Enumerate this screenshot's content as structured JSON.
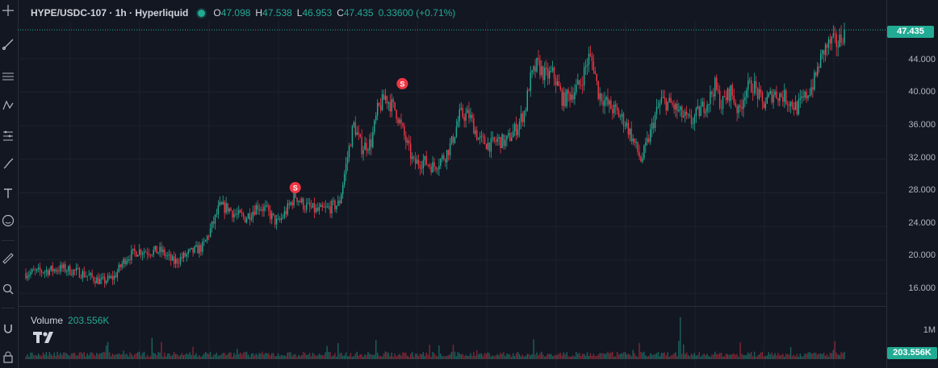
{
  "header": {
    "symbol": "HYPE/USDC-107 · 1h · Hyperliquid",
    "open_label": "O",
    "open": "47.098",
    "high_label": "H",
    "high": "47.538",
    "low_label": "L",
    "low": "46.953",
    "close_label": "C",
    "close": "47.435",
    "change": "0.33600 (+0.71%)"
  },
  "volume": {
    "label": "Volume",
    "value": "203.556K",
    "badge": "203.556K",
    "scale_tick": "1M"
  },
  "price_scale": {
    "ticks": [
      "44.000",
      "40.000",
      "36.000",
      "32.000",
      "28.000",
      "24.000",
      "20.000",
      "16.000"
    ],
    "last_price": "47.435"
  },
  "colors": {
    "up": "#22ab94",
    "down": "#f23645",
    "background": "#131722",
    "grid": "#1e222d",
    "signal": "#f23645"
  },
  "toolbar": {
    "icons": [
      "crosshair-icon",
      "trend-line-icon",
      "fib-retracement-icon",
      "pattern-icon",
      "forecast-icon",
      "brush-icon",
      "text-icon",
      "emoji-icon",
      "ruler-icon",
      "zoom-icon",
      "magnet-icon",
      "lock-icon"
    ]
  },
  "chart_data": {
    "type": "candlestick",
    "ylim": [
      14.5,
      48.5
    ],
    "grid": true,
    "last_close": 47.435,
    "path": [
      [
        0,
        18.4
      ],
      [
        18,
        18.6
      ],
      [
        45,
        19.0
      ],
      [
        70,
        18.4
      ],
      [
        95,
        17.4
      ],
      [
        110,
        17.9
      ],
      [
        125,
        20.2
      ],
      [
        140,
        21.1
      ],
      [
        170,
        21.0
      ],
      [
        185,
        19.7
      ],
      [
        205,
        20.8
      ],
      [
        222,
        21.6
      ],
      [
        235,
        24.5
      ],
      [
        242,
        26.3
      ],
      [
        253,
        26.2
      ],
      [
        262,
        25.4
      ],
      [
        275,
        25.0
      ],
      [
        290,
        26.5
      ],
      [
        300,
        26.0
      ],
      [
        315,
        24.3
      ],
      [
        327,
        26.0
      ],
      [
        337,
        27.7
      ],
      [
        348,
        26.5
      ],
      [
        365,
        25.8
      ],
      [
        377,
        26.1
      ],
      [
        392,
        26.7
      ],
      [
        400,
        31.0
      ],
      [
        410,
        36.2
      ],
      [
        420,
        33.4
      ],
      [
        432,
        34.0
      ],
      [
        440,
        37.8
      ],
      [
        450,
        39.5
      ],
      [
        456,
        38.6
      ],
      [
        463,
        37.8
      ],
      [
        475,
        34.3
      ],
      [
        485,
        31.5
      ],
      [
        497,
        31.8
      ],
      [
        510,
        31.1
      ],
      [
        525,
        32.5
      ],
      [
        533,
        34.0
      ],
      [
        543,
        37.3
      ],
      [
        555,
        37.2
      ],
      [
        567,
        34.3
      ],
      [
        582,
        33.7
      ],
      [
        590,
        34.3
      ],
      [
        600,
        34.0
      ],
      [
        615,
        35.9
      ],
      [
        625,
        38.0
      ],
      [
        630,
        41.2
      ],
      [
        640,
        43.3
      ],
      [
        650,
        41.9
      ],
      [
        660,
        42.2
      ],
      [
        672,
        39.0
      ],
      [
        684,
        40.0
      ],
      [
        694,
        41.0
      ],
      [
        704,
        44.2
      ],
      [
        710,
        43.4
      ],
      [
        716,
        40.0
      ],
      [
        728,
        38.5
      ],
      [
        740,
        37.5
      ],
      [
        750,
        36.4
      ],
      [
        758,
        34.7
      ],
      [
        770,
        31.8
      ],
      [
        780,
        34.7
      ],
      [
        787,
        37.1
      ],
      [
        795,
        39.0
      ],
      [
        808,
        38.5
      ],
      [
        820,
        37.3
      ],
      [
        832,
        36.4
      ],
      [
        845,
        38.0
      ],
      [
        855,
        39.2
      ],
      [
        862,
        40.8
      ],
      [
        870,
        38.5
      ],
      [
        882,
        40.2
      ],
      [
        892,
        37.5
      ],
      [
        900,
        40.3
      ],
      [
        910,
        40.9
      ],
      [
        922,
        38.5
      ],
      [
        935,
        39.9
      ],
      [
        948,
        39.5
      ],
      [
        965,
        38.1
      ],
      [
        975,
        39.4
      ],
      [
        986,
        41.2
      ],
      [
        993,
        43.6
      ],
      [
        999,
        45.1
      ],
      [
        1008,
        46.0
      ],
      [
        1016,
        45.8
      ],
      [
        1020,
        46.5
      ],
      [
        1024,
        47.435
      ]
    ],
    "volume_max_label": "1M",
    "current_volume": "203.556K"
  }
}
